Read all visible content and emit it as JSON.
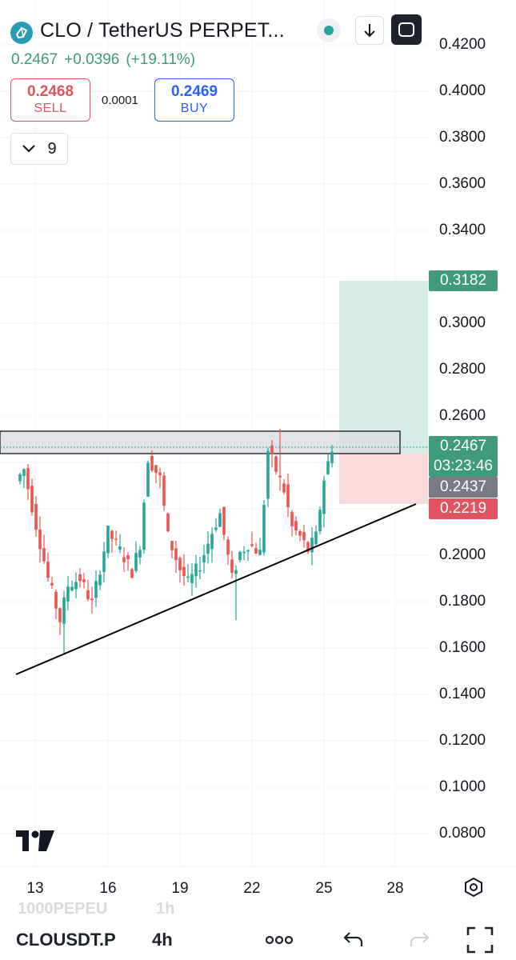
{
  "header": {
    "title": "CLO / TetherUS PERPET...",
    "last_price": "0.2467",
    "change_abs": "+0.0396",
    "change_pct": "(+19.11%)"
  },
  "trade": {
    "sell_price": "0.2468",
    "sell_label": "SELL",
    "spread": "0.0001",
    "buy_price": "0.2469",
    "buy_label": "BUY"
  },
  "indicators": {
    "count": "9"
  },
  "colors": {
    "up": "#26a69a",
    "down": "#ef5350",
    "target_zone": "#d5ece6",
    "stop_zone": "#f9dadc",
    "resistance_zone": "#d1d4dc",
    "price_tag": "#3f9b7c",
    "entry_tag": "#787b86",
    "stop_tag": "#e0535f"
  },
  "price_axis": {
    "labels": [
      "0.4200",
      "0.4000",
      "0.3800",
      "0.3600",
      "0.3400",
      "0.3000",
      "0.2800",
      "0.2600",
      "0.2000",
      "0.1800",
      "0.1600",
      "0.1400",
      "0.1200",
      "0.1000",
      "0.0800"
    ],
    "tags": {
      "target": "0.3182",
      "last": "0.2467",
      "countdown": "03:23:46",
      "entry": "0.2437",
      "stop": "0.2219"
    }
  },
  "time_axis": {
    "labels": [
      "13",
      "16",
      "19",
      "22",
      "25",
      "28"
    ]
  },
  "bottom": {
    "symbol": "CLOUSDT.P",
    "timeframe": "4h",
    "ghost_symbol": "1000PEPEU",
    "ghost_timeframe": "1h"
  },
  "icons": [
    "clo-logo-icon",
    "status-dot-icon",
    "download-icon",
    "fullscreen-icon",
    "chevron-down-icon",
    "settings-hex-icon",
    "more-icon",
    "undo-icon",
    "redo-icon",
    "expand-icon",
    "tradingview-logo-icon"
  ],
  "chart_data": {
    "type": "candlestick",
    "x_tick_labels": [
      "13",
      "16",
      "19",
      "22",
      "25",
      "28"
    ],
    "y_range": [
      0.06,
      0.43
    ],
    "resistance_zone": [
      0.245,
      0.2545
    ],
    "support_trendline": [
      {
        "x": "12.4",
        "y": 0.149
      },
      {
        "x": "26.8",
        "y": 0.2215
      }
    ],
    "position": {
      "entry": 0.2437,
      "target": 0.3182,
      "stop": 0.2219
    },
    "last_price": 0.2467,
    "swing_points": [
      {
        "x": "12.2",
        "y": 0.232
      },
      {
        "x": "12.6",
        "y": 0.237
      },
      {
        "x": "13.1",
        "y": 0.213
      },
      {
        "x": "13.6",
        "y": 0.19
      },
      {
        "x": "14.1",
        "y": 0.172
      },
      {
        "x": "14.4",
        "y": 0.187
      },
      {
        "x": "14.9",
        "y": 0.19
      },
      {
        "x": "15.4",
        "y": 0.179
      },
      {
        "x": "16.0",
        "y": 0.21
      },
      {
        "x": "16.5",
        "y": 0.202
      },
      {
        "x": "17.0",
        "y": 0.193
      },
      {
        "x": "17.3",
        "y": 0.205
      },
      {
        "x": "17.6",
        "y": 0.242
      },
      {
        "x": "18.1",
        "y": 0.233
      },
      {
        "x": "18.5",
        "y": 0.208
      },
      {
        "x": "19.0",
        "y": 0.194
      },
      {
        "x": "19.4",
        "y": 0.188
      },
      {
        "x": "19.9",
        "y": 0.196
      },
      {
        "x": "20.4",
        "y": 0.21
      },
      {
        "x": "20.8",
        "y": 0.218
      },
      {
        "x": "21.3",
        "y": 0.19
      },
      {
        "x": "21.6",
        "y": 0.201
      },
      {
        "x": "22.0",
        "y": 0.205
      },
      {
        "x": "22.5",
        "y": 0.201
      },
      {
        "x": "22.8",
        "y": 0.245
      },
      {
        "x": "23.4",
        "y": 0.228
      },
      {
        "x": "23.8",
        "y": 0.212
      },
      {
        "x": "24.2",
        "y": 0.208
      },
      {
        "x": "24.6",
        "y": 0.202
      },
      {
        "x": "25.0",
        "y": 0.208
      },
      {
        "x": "25.4",
        "y": 0.233
      },
      {
        "x": "25.7",
        "y": 0.2467
      }
    ]
  }
}
